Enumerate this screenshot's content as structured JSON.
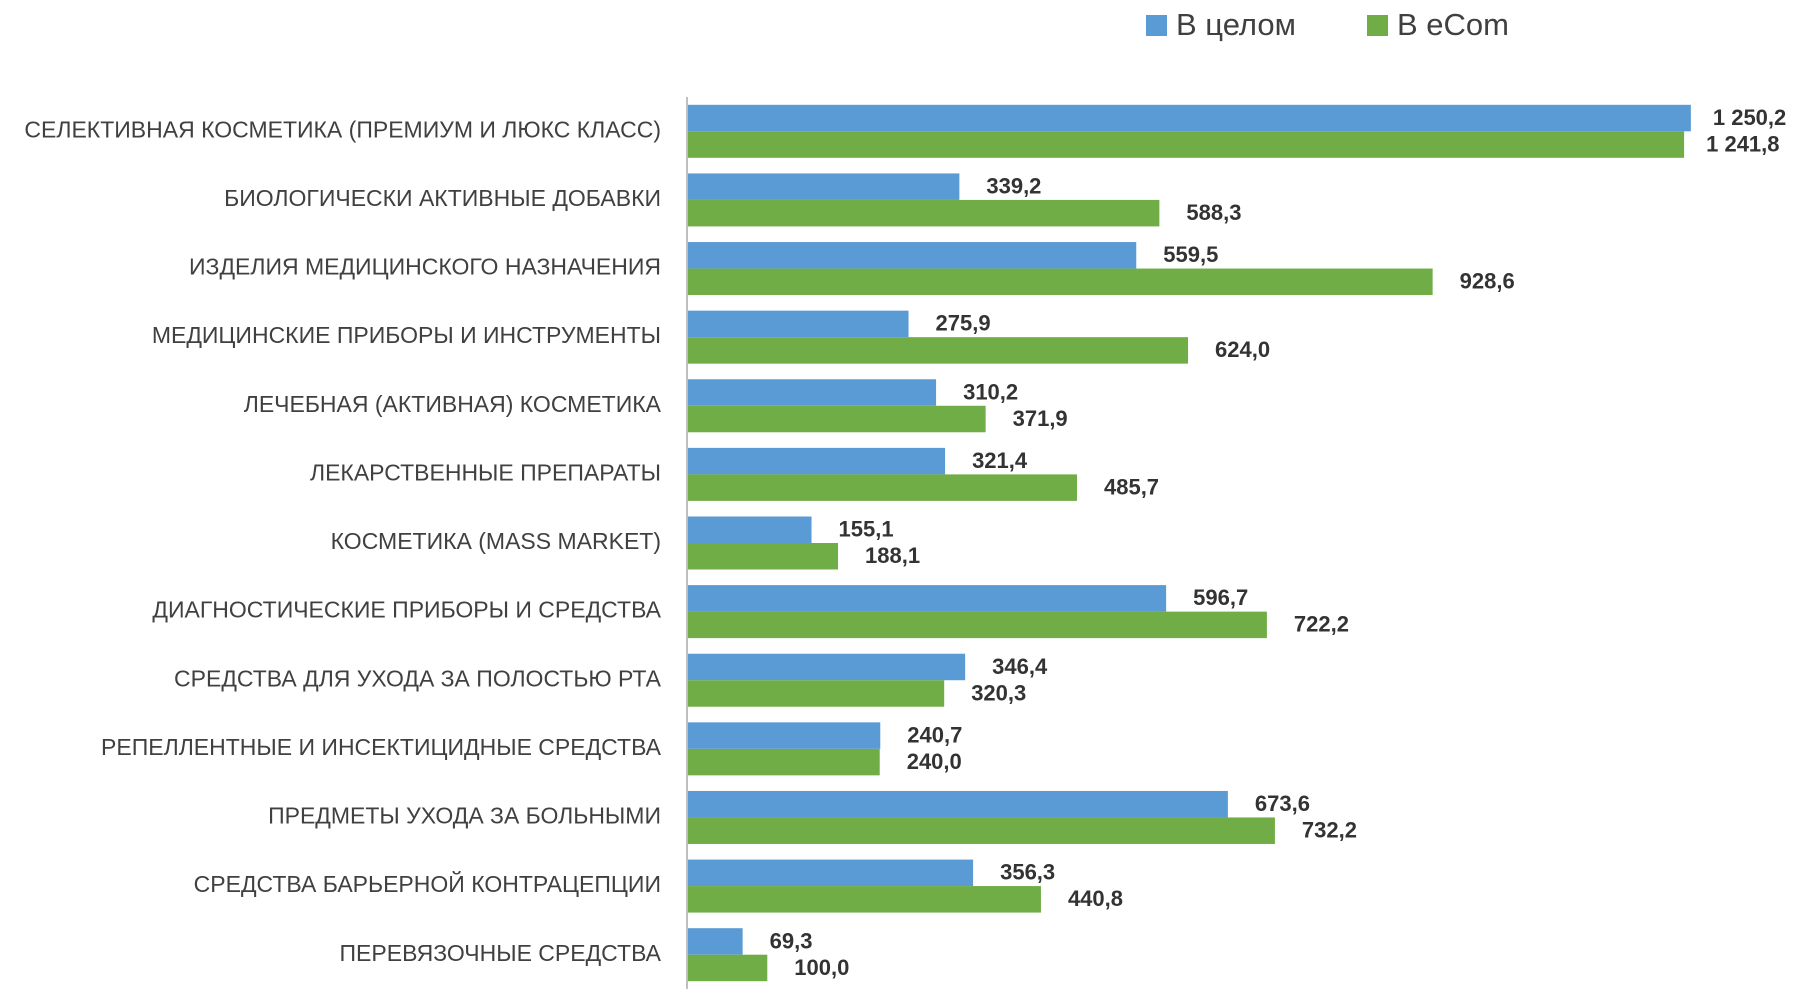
{
  "chart_data": {
    "type": "barh",
    "categories": [
      "СЕЛЕКТИВНАЯ КОСМЕТИКА (ПРЕМИУМ И ЛЮКС КЛАСС)",
      "БИОЛОГИЧЕСКИ АКТИВНЫЕ ДОБАВКИ",
      "ИЗДЕЛИЯ МЕДИЦИНСКОГО НАЗНАЧЕНИЯ",
      "МЕДИЦИНСКИЕ ПРИБОРЫ И ИНСТРУМЕНТЫ",
      "ЛЕЧЕБНАЯ (АКТИВНАЯ) КОСМЕТИКА",
      "ЛЕКАРСТВЕННЫЕ ПРЕПАРАТЫ",
      "КОСМЕТИКА (MASS MARKET)",
      "ДИАГНОСТИЧЕСКИЕ ПРИБОРЫ И СРЕДСТВА",
      "СРЕДСТВА ДЛЯ УХОДА ЗА ПОЛОСТЬЮ РТА",
      "РЕПЕЛЛЕНТНЫЕ И ИНСЕКТИЦИДНЫЕ СРЕДСТВА",
      "ПРЕДМЕТЫ УХОДА ЗА БОЛЬНЫМИ",
      "СРЕДСТВА БАРЬЕРНОЙ КОНТРАЦЕПЦИИ",
      "ПЕРЕВЯЗОЧНЫЕ СРЕДСТВА"
    ],
    "series": [
      {
        "name": "В целом",
        "color": "#5b9bd5",
        "values": [
          1250.2,
          339.2,
          559.5,
          275.9,
          310.2,
          321.4,
          155.1,
          596.7,
          346.4,
          240.7,
          673.6,
          356.3,
          69.3
        ],
        "value_labels": [
          "1 250,2",
          "339,2",
          "559,5",
          "275,9",
          "310,2",
          "321,4",
          "155,1",
          "596,7",
          "346,4",
          "240,7",
          "673,6",
          "356,3",
          "69,3"
        ]
      },
      {
        "name": "В eCom",
        "color": "#70ad47",
        "values": [
          1241.8,
          588.3,
          928.6,
          624.0,
          371.9,
          485.7,
          188.1,
          722.2,
          320.3,
          240.0,
          732.2,
          440.8,
          100.0
        ],
        "value_labels": [
          "1 241,8",
          "588,3",
          "928,6",
          "624,0",
          "371,9",
          "485,7",
          "188,1",
          "722,2",
          "320,3",
          "240,0",
          "732,2",
          "440,8",
          "100,0"
        ]
      }
    ],
    "xlim": [
      0,
      1350
    ],
    "legend": "top"
  }
}
